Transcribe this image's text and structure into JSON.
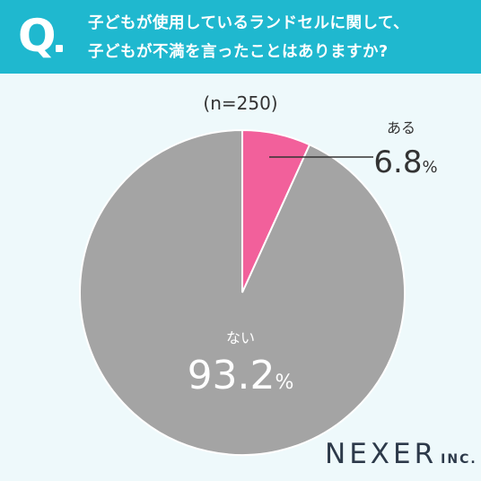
{
  "header": {
    "q_mark": "Q",
    "question_line1": "子どもが使用しているランドセルに関して、",
    "question_line2": "子どもが不満を言ったことはありますか?"
  },
  "sample_size": "(n=250)",
  "colors": {
    "header_bg": "#1fb8cf",
    "yes": "#f2609b",
    "no": "#a4a4a4",
    "bg": "#eef9fb"
  },
  "chart_data": {
    "type": "pie",
    "title": "子どもが使用しているランドセルに関して、子どもが不満を言ったことはありますか?",
    "n": 250,
    "slices": [
      {
        "label": "ある",
        "value": 6.8,
        "display": "6.8",
        "unit": "%",
        "color": "#f2609b"
      },
      {
        "label": "ない",
        "value": 93.2,
        "display": "93.2",
        "unit": "%",
        "color": "#a4a4a4"
      }
    ]
  },
  "logo": {
    "main": "NEXER",
    "suffix": "INC."
  }
}
